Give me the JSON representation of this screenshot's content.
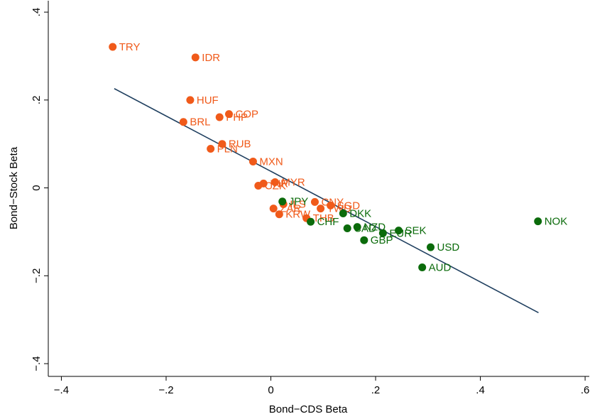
{
  "chart_data": {
    "type": "scatter",
    "xlabel": "Bond−CDS Beta",
    "ylabel": "Bond−Stock Beta",
    "xlim": [
      -0.425,
      0.608
    ],
    "ylim": [
      -0.429,
      0.426
    ],
    "xticks": [
      {
        "value": -0.4,
        "label": "−.4"
      },
      {
        "value": -0.2,
        "label": "−.2"
      },
      0,
      {
        "value": 0.2,
        "label": ".2"
      },
      {
        "value": 0.4,
        "label": ".4"
      },
      {
        "value": 0.6,
        "label": ".6"
      }
    ],
    "yticks": [
      {
        "value": -0.4,
        "label": "−.4"
      },
      {
        "value": -0.2,
        "label": "−.2"
      },
      0,
      {
        "value": 0.2,
        "label": ".2"
      },
      {
        "value": 0.4,
        "label": ".4"
      }
    ],
    "series": [
      {
        "color": "#f05a1a",
        "labels": [
          "TRY",
          "IDR",
          "HUF",
          "COP",
          "PHP",
          "BRL",
          "RUB",
          "PLN",
          "MXN",
          "MYR",
          "INR",
          "CZK",
          "CNY",
          "SGD",
          "TWD",
          "ZAR",
          "ILS",
          "KRW",
          "THB"
        ],
        "x": [
          -0.302,
          -0.144,
          -0.154,
          -0.08,
          -0.098,
          -0.167,
          -0.093,
          -0.115,
          -0.034,
          0.008,
          -0.014,
          -0.024,
          0.084,
          0.114,
          0.095,
          0.005,
          0.024,
          0.016,
          0.068
        ],
        "values": [
          0.321,
          0.297,
          0.2,
          0.168,
          0.161,
          0.15,
          0.1,
          0.089,
          0.06,
          0.013,
          0.01,
          0.005,
          -0.032,
          -0.04,
          -0.047,
          -0.047,
          -0.037,
          -0.06,
          -0.069
        ]
      },
      {
        "color": "#0b6b0b",
        "labels": [
          "JPY",
          "CHF",
          "DKK",
          "NZD",
          "CAD",
          "EUR",
          "SEK",
          "GBP",
          "USD",
          "AUD",
          "NOK"
        ],
        "x": [
          0.022,
          0.076,
          0.138,
          0.165,
          0.146,
          0.214,
          0.244,
          0.178,
          0.305,
          0.289,
          0.51
        ],
        "values": [
          -0.031,
          -0.077,
          -0.058,
          -0.089,
          -0.092,
          -0.103,
          -0.097,
          -0.119,
          -0.135,
          -0.181,
          -0.076
        ]
      }
    ],
    "fit_line": {
      "color": "#1f3f5f",
      "x": [
        -0.299,
        0.511
      ],
      "values": [
        0.226,
        -0.284
      ]
    }
  }
}
